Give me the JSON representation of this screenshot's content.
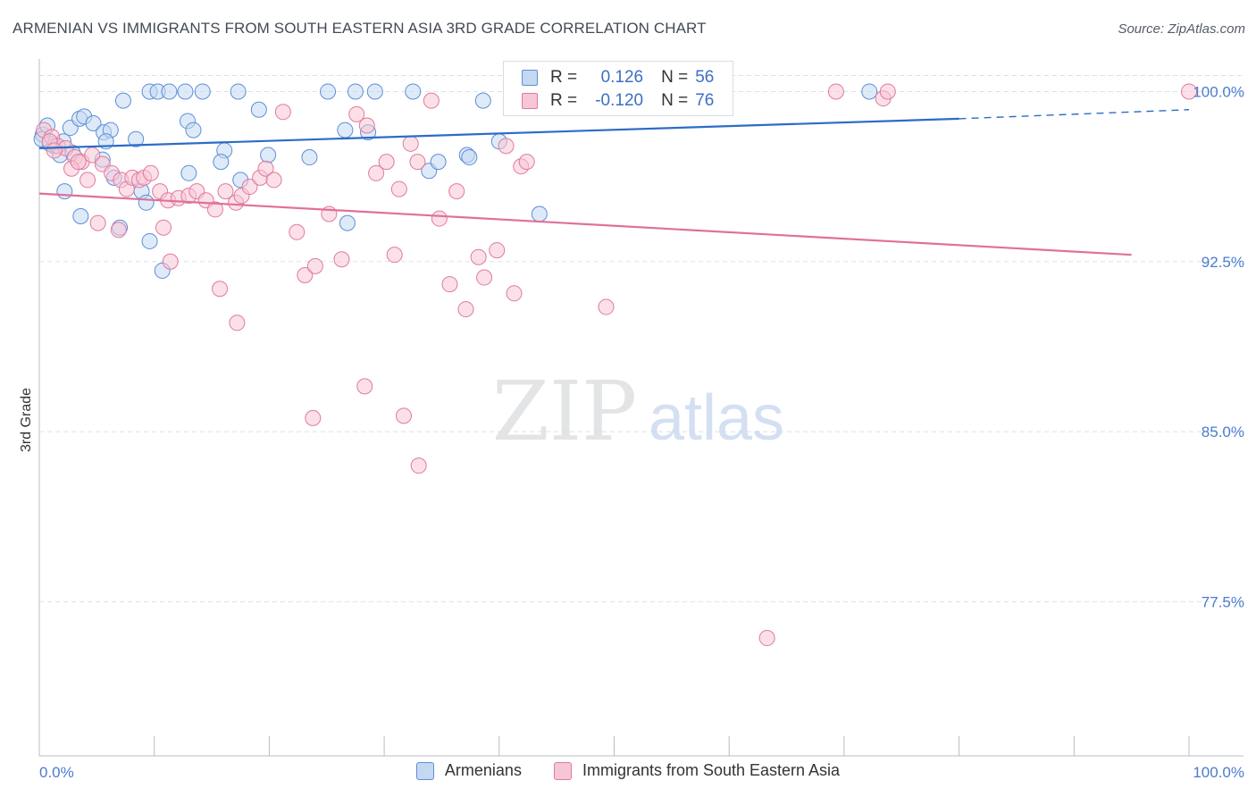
{
  "title": "ARMENIAN VS IMMIGRANTS FROM SOUTH EASTERN ASIA 3RD GRADE CORRELATION CHART",
  "source": "Source: ZipAtlas.com",
  "watermark": {
    "zip": "ZIP",
    "atlas": "atlas"
  },
  "colors": {
    "blue": "#5b8fd6",
    "blue_fill": "#c5d8f2",
    "blue_line": "#2c6cc6",
    "pink": "#e07a9e",
    "pink_fill": "#f7c6d6",
    "pink_line": "#e0709a",
    "axis_text": "#4a7cd0",
    "grid": "#dde1e6"
  },
  "legend": {
    "rows": [
      {
        "r_label": "R =",
        "r_value": "0.126",
        "n_label": "N =",
        "n_value": "56"
      },
      {
        "r_label": "R =",
        "r_value": "-0.120",
        "n_label": "N =",
        "n_value": "76"
      }
    ]
  },
  "bottom_legend": {
    "series_a": "Armenians",
    "series_b": "Immigrants from South Eastern Asia"
  },
  "chart_data": {
    "type": "scatter",
    "title": "ARMENIAN VS IMMIGRANTS FROM SOUTH EASTERN ASIA 3RD GRADE CORRELATION CHART",
    "xlabel": "",
    "ylabel": "3rd Grade",
    "xlim": [
      0,
      100
    ],
    "ylim": [
      70.7,
      101.2
    ],
    "x_tick_labels": [
      "0.0%",
      "100.0%"
    ],
    "y_ticks": [
      100.0,
      92.5,
      85.0,
      77.5
    ],
    "y_tick_labels": [
      "100.0%",
      "92.5%",
      "85.0%",
      "77.5%"
    ],
    "series": [
      {
        "name": "Armenians",
        "r": 0.126,
        "n": 56,
        "trend": {
          "x0": 0,
          "y0": 97.5,
          "x1": 80,
          "y1": 98.8,
          "dash_to_x": 100,
          "dash_to_y": 99.2
        },
        "points": [
          [
            0.3,
            98.1
          ],
          [
            0.7,
            98.5
          ],
          [
            1.3,
            97.6
          ],
          [
            1.8,
            97.2
          ],
          [
            2.1,
            97.8
          ],
          [
            0.9,
            97.7
          ],
          [
            2.7,
            98.4
          ],
          [
            3.5,
            98.8
          ],
          [
            3.9,
            98.9
          ],
          [
            4.7,
            98.6
          ],
          [
            5.6,
            98.2
          ],
          [
            6.2,
            98.3
          ],
          [
            5.8,
            97.8
          ],
          [
            7.3,
            99.6
          ],
          [
            8.4,
            97.9
          ],
          [
            2.9,
            97.3
          ],
          [
            5.5,
            97.0
          ],
          [
            6.5,
            96.2
          ],
          [
            9.6,
            100.0
          ],
          [
            10.3,
            100.0
          ],
          [
            11.3,
            100.0
          ],
          [
            12.7,
            100.0
          ],
          [
            14.2,
            100.0
          ],
          [
            17.3,
            100.0
          ],
          [
            25.1,
            100.0
          ],
          [
            27.5,
            100.0
          ],
          [
            29.2,
            100.0
          ],
          [
            32.5,
            100.0
          ],
          [
            38.6,
            99.6
          ],
          [
            72.2,
            100.0
          ],
          [
            12.9,
            98.7
          ],
          [
            13.4,
            98.3
          ],
          [
            19.1,
            99.2
          ],
          [
            26.6,
            98.3
          ],
          [
            28.6,
            98.2
          ],
          [
            40.0,
            97.8
          ],
          [
            16.1,
            97.4
          ],
          [
            19.9,
            97.2
          ],
          [
            23.5,
            97.1
          ],
          [
            37.2,
            97.2
          ],
          [
            37.4,
            97.1
          ],
          [
            15.8,
            96.9
          ],
          [
            33.9,
            96.5
          ],
          [
            34.7,
            96.9
          ],
          [
            13.0,
            96.4
          ],
          [
            17.5,
            96.1
          ],
          [
            2.2,
            95.6
          ],
          [
            8.9,
            95.6
          ],
          [
            9.3,
            95.1
          ],
          [
            3.6,
            94.5
          ],
          [
            7.0,
            94.0
          ],
          [
            26.8,
            94.2
          ],
          [
            43.5,
            94.6
          ],
          [
            9.6,
            93.4
          ],
          [
            10.7,
            92.1
          ],
          [
            0.2,
            97.9
          ]
        ]
      },
      {
        "name": "Immigrants from South Eastern Asia",
        "r": -0.12,
        "n": 76,
        "trend": {
          "x0": 0,
          "y0": 95.5,
          "x1": 95,
          "y1": 92.8
        },
        "points": [
          [
            0.4,
            98.3
          ],
          [
            1.1,
            98.0
          ],
          [
            1.6,
            97.6
          ],
          [
            2.3,
            97.5
          ],
          [
            3.1,
            97.1
          ],
          [
            3.7,
            96.9
          ],
          [
            4.6,
            97.2
          ],
          [
            5.5,
            96.8
          ],
          [
            6.3,
            96.4
          ],
          [
            7.1,
            96.1
          ],
          [
            7.6,
            95.7
          ],
          [
            8.1,
            96.2
          ],
          [
            8.7,
            96.1
          ],
          [
            9.1,
            96.2
          ],
          [
            9.7,
            96.4
          ],
          [
            10.5,
            95.6
          ],
          [
            11.2,
            95.2
          ],
          [
            12.1,
            95.3
          ],
          [
            13.0,
            95.4
          ],
          [
            13.7,
            95.6
          ],
          [
            14.5,
            95.2
          ],
          [
            15.3,
            94.8
          ],
          [
            16.2,
            95.6
          ],
          [
            17.1,
            95.1
          ],
          [
            17.6,
            95.4
          ],
          [
            18.3,
            95.8
          ],
          [
            19.2,
            96.2
          ],
          [
            19.7,
            96.6
          ],
          [
            20.4,
            96.1
          ],
          [
            21.2,
            99.1
          ],
          [
            22.4,
            93.8
          ],
          [
            23.1,
            91.9
          ],
          [
            24.0,
            92.3
          ],
          [
            25.2,
            94.6
          ],
          [
            26.3,
            92.6
          ],
          [
            27.6,
            99.0
          ],
          [
            28.5,
            98.5
          ],
          [
            29.3,
            96.4
          ],
          [
            30.2,
            96.9
          ],
          [
            30.9,
            92.8
          ],
          [
            31.3,
            95.7
          ],
          [
            32.3,
            97.7
          ],
          [
            32.9,
            96.9
          ],
          [
            34.1,
            99.6
          ],
          [
            34.8,
            94.4
          ],
          [
            35.7,
            91.5
          ],
          [
            36.3,
            95.6
          ],
          [
            37.1,
            90.4
          ],
          [
            38.2,
            92.7
          ],
          [
            38.7,
            91.8
          ],
          [
            39.8,
            93.0
          ],
          [
            40.6,
            97.6
          ],
          [
            41.3,
            91.1
          ],
          [
            41.9,
            96.7
          ],
          [
            42.4,
            96.9
          ],
          [
            2.8,
            96.6
          ],
          [
            4.2,
            96.1
          ],
          [
            5.1,
            94.2
          ],
          [
            6.9,
            93.9
          ],
          [
            10.8,
            94.0
          ],
          [
            11.4,
            92.5
          ],
          [
            15.7,
            91.3
          ],
          [
            17.2,
            89.8
          ],
          [
            28.3,
            87.0
          ],
          [
            23.8,
            85.6
          ],
          [
            31.7,
            85.7
          ],
          [
            33.0,
            83.5
          ],
          [
            49.3,
            90.5
          ],
          [
            63.3,
            75.9
          ],
          [
            69.3,
            100.0
          ],
          [
            73.4,
            99.7
          ],
          [
            73.8,
            100.0
          ],
          [
            100.0,
            100.0
          ],
          [
            0.9,
            97.8
          ],
          [
            1.3,
            97.4
          ],
          [
            3.4,
            96.9
          ]
        ]
      }
    ]
  }
}
